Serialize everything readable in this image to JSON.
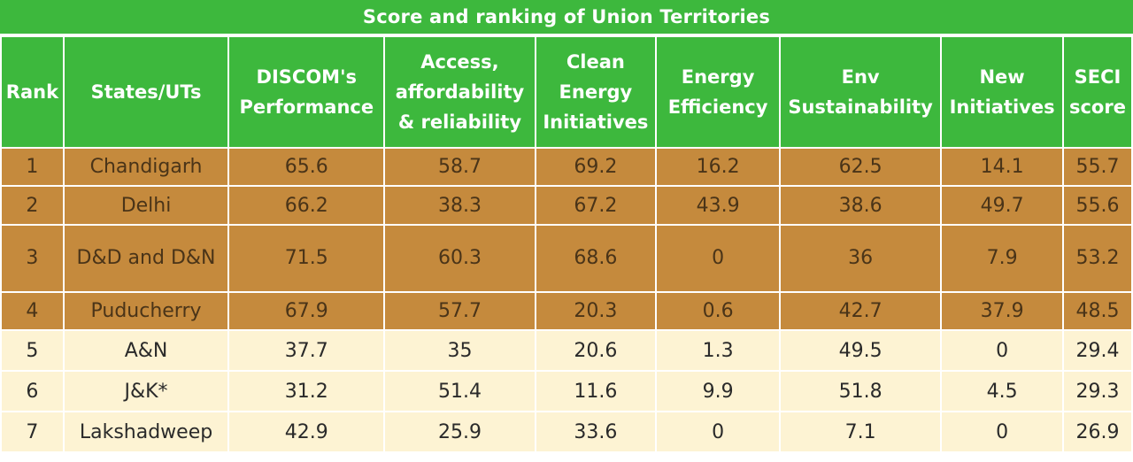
{
  "title": "Score and ranking of Union Territories",
  "headers": [
    "Rank",
    "States/UTs",
    "DISCOM's Performance",
    "Access, affordability & reliability",
    "Clean Energy Initiatives",
    "Energy Efficiency",
    "Env Sustainability",
    "New Initiatives",
    "SECI score"
  ],
  "rows": [
    [
      "1",
      "Chandigarh",
      "65.6",
      "58.7",
      "69.2",
      "16.2",
      "62.5",
      "14.1",
      "55.7"
    ],
    [
      "2",
      "Delhi",
      "66.2",
      "38.3",
      "67.2",
      "43.9",
      "38.6",
      "49.7",
      "55.6"
    ],
    [
      "3",
      "D&D and D&N",
      "71.5",
      "60.3",
      "68.6",
      "0",
      "36",
      "7.9",
      "53.2"
    ],
    [
      "4",
      "Puducherry",
      "67.9",
      "57.7",
      "20.3",
      "0.6",
      "42.7",
      "37.9",
      "48.5"
    ],
    [
      "5",
      "A&N",
      "37.7",
      "35",
      "20.6",
      "1.3",
      "49.5",
      "0",
      "29.4"
    ],
    [
      "6",
      "J&K*",
      "31.2",
      "51.4",
      "11.6",
      "9.9",
      "51.8",
      "4.5",
      "29.3"
    ],
    [
      "7",
      "Lakshadweep",
      "42.9",
      "25.9",
      "33.6",
      "0",
      "7.1",
      "0",
      "26.9"
    ]
  ],
  "colors": {
    "header_green": "#3db83d",
    "top_rank_row": "#c58a3d",
    "other_row": "#fdf3d3"
  }
}
